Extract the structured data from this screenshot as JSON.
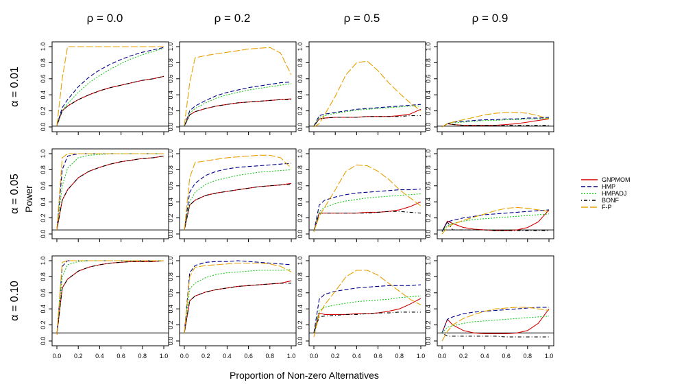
{
  "figure": {
    "xlabel": "Proportion of Non-zero Alternatives",
    "ylabel": "Power"
  },
  "chart_data": {
    "type": "line",
    "column_titles": [
      "ρ = 0.0",
      "ρ = 0.2",
      "ρ = 0.5",
      "ρ = 0.9"
    ],
    "row_titles": [
      "α = 0.01",
      "α = 0.05",
      "α = 0.10"
    ],
    "alpha_levels": [
      0.01,
      0.05,
      0.1
    ],
    "xlim": [
      0,
      1
    ],
    "ylim": [
      0,
      1
    ],
    "x_ticks": [
      "0.0",
      "0.2",
      "0.4",
      "0.6",
      "0.8",
      "1.0"
    ],
    "y_ticks": [
      "0.0",
      "0.2",
      "0.4",
      "0.6",
      "0.8",
      "1.0"
    ],
    "legend": [
      {
        "name": "GNPMOM",
        "color": "#d40000",
        "dash": "solid"
      },
      {
        "name": "HMP",
        "color": "#00008b",
        "dash": "dashed"
      },
      {
        "name": "HMPADJ",
        "color": "#1ec81e",
        "dash": "dotted"
      },
      {
        "name": "BONF",
        "color": "#000000",
        "dash": "dotdash"
      },
      {
        "name": "F-P",
        "color": "#e8a000",
        "dash": "longdash"
      }
    ],
    "x": [
      0.0,
      0.05,
      0.1,
      0.2,
      0.3,
      0.4,
      0.5,
      0.6,
      0.7,
      0.8,
      0.9,
      1.0
    ],
    "panels": [
      [
        {
          "GNPMOM": [
            0.02,
            0.2,
            0.26,
            0.34,
            0.4,
            0.45,
            0.49,
            0.52,
            0.55,
            0.58,
            0.6,
            0.63
          ],
          "HMP": [
            0.02,
            0.24,
            0.34,
            0.5,
            0.62,
            0.71,
            0.78,
            0.84,
            0.89,
            0.93,
            0.96,
            0.99
          ],
          "HMPADJ": [
            0.02,
            0.2,
            0.29,
            0.43,
            0.55,
            0.64,
            0.72,
            0.79,
            0.85,
            0.9,
            0.94,
            0.98
          ],
          "BONF": [
            0.02,
            0.2,
            0.26,
            0.34,
            0.4,
            0.45,
            0.49,
            0.52,
            0.55,
            0.58,
            0.6,
            0.63
          ],
          "F-P": [
            0.02,
            0.6,
            1.0,
            1.0,
            1.0,
            1.0,
            1.0,
            1.0,
            1.0,
            1.0,
            1.0,
            1.0
          ]
        },
        {
          "GNPMOM": [
            0.01,
            0.15,
            0.19,
            0.23,
            0.26,
            0.28,
            0.3,
            0.31,
            0.32,
            0.33,
            0.34,
            0.35
          ],
          "HMP": [
            0.01,
            0.2,
            0.26,
            0.33,
            0.39,
            0.43,
            0.46,
            0.49,
            0.51,
            0.53,
            0.55,
            0.56
          ],
          "HMPADJ": [
            0.01,
            0.17,
            0.23,
            0.3,
            0.36,
            0.4,
            0.43,
            0.46,
            0.48,
            0.5,
            0.52,
            0.54
          ],
          "BONF": [
            0.01,
            0.15,
            0.19,
            0.23,
            0.26,
            0.28,
            0.3,
            0.31,
            0.32,
            0.33,
            0.34,
            0.34
          ],
          "F-P": [
            0.02,
            0.55,
            0.86,
            0.89,
            0.91,
            0.93,
            0.95,
            0.97,
            0.98,
            0.99,
            0.92,
            0.65
          ]
        },
        {
          "GNPMOM": [
            0.01,
            0.1,
            0.11,
            0.12,
            0.12,
            0.12,
            0.13,
            0.13,
            0.13,
            0.14,
            0.16,
            0.22
          ],
          "HMP": [
            0.01,
            0.14,
            0.16,
            0.18,
            0.2,
            0.22,
            0.23,
            0.24,
            0.25,
            0.26,
            0.27,
            0.28
          ],
          "HMPADJ": [
            0.01,
            0.12,
            0.14,
            0.17,
            0.19,
            0.21,
            0.22,
            0.23,
            0.24,
            0.25,
            0.26,
            0.26
          ],
          "BONF": [
            0.01,
            0.1,
            0.11,
            0.12,
            0.12,
            0.12,
            0.13,
            0.13,
            0.13,
            0.13,
            0.14,
            0.14
          ],
          "F-P": [
            0.0,
            0.04,
            0.15,
            0.38,
            0.65,
            0.8,
            0.82,
            0.7,
            0.55,
            0.42,
            0.3,
            0.2
          ]
        },
        {
          "GNPMOM": [
            0.0,
            0.04,
            0.03,
            0.02,
            0.02,
            0.02,
            0.02,
            0.03,
            0.04,
            0.06,
            0.08,
            0.1
          ],
          "HMP": [
            0.0,
            0.04,
            0.06,
            0.07,
            0.08,
            0.09,
            0.09,
            0.1,
            0.1,
            0.11,
            0.11,
            0.12
          ],
          "HMPADJ": [
            0.0,
            0.04,
            0.05,
            0.06,
            0.07,
            0.08,
            0.08,
            0.09,
            0.09,
            0.1,
            0.1,
            0.11
          ],
          "BONF": [
            0.0,
            0.04,
            0.03,
            0.02,
            0.02,
            0.02,
            0.02,
            0.02,
            0.02,
            0.02,
            0.02,
            0.02
          ],
          "F-P": [
            0.0,
            0.04,
            0.06,
            0.09,
            0.12,
            0.15,
            0.17,
            0.18,
            0.18,
            0.17,
            0.14,
            0.1
          ]
        }
      ],
      [
        {
          "GNPMOM": [
            0.05,
            0.42,
            0.55,
            0.7,
            0.78,
            0.83,
            0.87,
            0.9,
            0.92,
            0.94,
            0.95,
            0.97
          ],
          "HMP": [
            0.05,
            0.8,
            0.97,
            1.0,
            1.0,
            1.0,
            1.0,
            1.0,
            1.0,
            1.0,
            1.0,
            1.0
          ],
          "HMPADJ": [
            0.05,
            0.6,
            0.82,
            0.95,
            0.98,
            0.99,
            1.0,
            1.0,
            1.0,
            1.0,
            1.0,
            1.0
          ],
          "BONF": [
            0.05,
            0.42,
            0.55,
            0.7,
            0.78,
            0.83,
            0.87,
            0.9,
            0.92,
            0.94,
            0.95,
            0.97
          ],
          "F-P": [
            0.05,
            0.95,
            1.0,
            1.0,
            1.0,
            1.0,
            1.0,
            1.0,
            1.0,
            1.0,
            1.0,
            1.0
          ]
        },
        {
          "GNPMOM": [
            0.05,
            0.36,
            0.42,
            0.48,
            0.51,
            0.53,
            0.55,
            0.57,
            0.59,
            0.6,
            0.61,
            0.63
          ],
          "HMP": [
            0.05,
            0.52,
            0.63,
            0.73,
            0.78,
            0.81,
            0.83,
            0.84,
            0.85,
            0.86,
            0.87,
            0.88
          ],
          "HMPADJ": [
            0.05,
            0.4,
            0.52,
            0.62,
            0.67,
            0.7,
            0.73,
            0.75,
            0.77,
            0.78,
            0.79,
            0.8
          ],
          "BONF": [
            0.05,
            0.36,
            0.42,
            0.48,
            0.51,
            0.53,
            0.55,
            0.57,
            0.59,
            0.6,
            0.61,
            0.62
          ],
          "F-P": [
            0.05,
            0.7,
            0.89,
            0.91,
            0.93,
            0.95,
            0.96,
            0.97,
            0.98,
            0.98,
            0.95,
            0.82
          ]
        },
        {
          "GNPMOM": [
            0.03,
            0.26,
            0.26,
            0.26,
            0.26,
            0.26,
            0.27,
            0.27,
            0.28,
            0.3,
            0.34,
            0.4
          ],
          "HMP": [
            0.03,
            0.36,
            0.42,
            0.46,
            0.49,
            0.51,
            0.52,
            0.53,
            0.54,
            0.55,
            0.55,
            0.56
          ],
          "HMPADJ": [
            0.03,
            0.28,
            0.33,
            0.38,
            0.41,
            0.43,
            0.45,
            0.46,
            0.47,
            0.48,
            0.49,
            0.5
          ],
          "BONF": [
            0.03,
            0.26,
            0.26,
            0.26,
            0.26,
            0.26,
            0.26,
            0.27,
            0.28,
            0.28,
            0.27,
            0.26
          ],
          "F-P": [
            0.03,
            0.22,
            0.33,
            0.55,
            0.78,
            0.86,
            0.85,
            0.78,
            0.68,
            0.55,
            0.45,
            0.35
          ]
        },
        {
          "GNPMOM": [
            0.03,
            0.16,
            0.13,
            0.08,
            0.06,
            0.05,
            0.04,
            0.04,
            0.05,
            0.08,
            0.15,
            0.3
          ],
          "HMP": [
            0.03,
            0.15,
            0.17,
            0.2,
            0.22,
            0.24,
            0.25,
            0.26,
            0.27,
            0.28,
            0.29,
            0.3
          ],
          "HMPADJ": [
            0.03,
            0.1,
            0.13,
            0.16,
            0.18,
            0.19,
            0.2,
            0.21,
            0.22,
            0.23,
            0.24,
            0.25
          ],
          "BONF": [
            0.03,
            0.15,
            0.05,
            0.05,
            0.05,
            0.05,
            0.04,
            0.04,
            0.04,
            0.04,
            0.04,
            0.04
          ],
          "F-P": [
            0.0,
            0.08,
            0.12,
            0.17,
            0.21,
            0.25,
            0.29,
            0.32,
            0.33,
            0.32,
            0.3,
            0.28
          ]
        }
      ],
      [
        {
          "GNPMOM": [
            0.08,
            0.66,
            0.77,
            0.87,
            0.92,
            0.95,
            0.97,
            0.98,
            0.99,
            0.99,
            0.99,
            1.0
          ],
          "HMP": [
            0.08,
            0.93,
            1.0,
            1.0,
            1.0,
            1.0,
            1.0,
            1.0,
            1.0,
            1.0,
            1.0,
            1.0
          ],
          "HMPADJ": [
            0.08,
            0.8,
            0.95,
            0.99,
            1.0,
            1.0,
            1.0,
            1.0,
            1.0,
            1.0,
            1.0,
            1.0
          ],
          "BONF": [
            0.08,
            0.66,
            0.77,
            0.87,
            0.92,
            0.95,
            0.97,
            0.98,
            0.99,
            0.99,
            0.99,
            1.0
          ],
          "F-P": [
            0.08,
            0.98,
            1.0,
            1.0,
            1.0,
            1.0,
            1.0,
            1.0,
            1.0,
            1.0,
            1.0,
            1.0
          ]
        },
        {
          "GNPMOM": [
            0.1,
            0.5,
            0.56,
            0.61,
            0.64,
            0.66,
            0.68,
            0.69,
            0.7,
            0.71,
            0.72,
            0.75
          ],
          "HMP": [
            0.1,
            0.85,
            0.94,
            0.98,
            0.99,
            0.99,
            1.0,
            0.99,
            0.98,
            0.97,
            0.96,
            0.95
          ],
          "HMPADJ": [
            0.1,
            0.65,
            0.72,
            0.79,
            0.83,
            0.85,
            0.86,
            0.87,
            0.88,
            0.88,
            0.88,
            0.89
          ],
          "BONF": [
            0.1,
            0.5,
            0.56,
            0.61,
            0.64,
            0.66,
            0.68,
            0.69,
            0.7,
            0.71,
            0.72,
            0.72
          ],
          "F-P": [
            0.1,
            0.8,
            0.92,
            0.94,
            0.95,
            0.96,
            0.97,
            0.97,
            0.97,
            0.96,
            0.93,
            0.86
          ]
        },
        {
          "GNPMOM": [
            0.1,
            0.35,
            0.33,
            0.33,
            0.33,
            0.34,
            0.34,
            0.35,
            0.37,
            0.4,
            0.46,
            0.53
          ],
          "HMP": [
            0.1,
            0.52,
            0.58,
            0.62,
            0.64,
            0.66,
            0.67,
            0.68,
            0.69,
            0.69,
            0.69,
            0.7
          ],
          "HMPADJ": [
            0.1,
            0.38,
            0.42,
            0.45,
            0.47,
            0.49,
            0.5,
            0.51,
            0.52,
            0.54,
            0.55,
            0.56
          ],
          "BONF": [
            0.1,
            0.3,
            0.31,
            0.32,
            0.33,
            0.33,
            0.34,
            0.35,
            0.35,
            0.36,
            0.36,
            0.36
          ],
          "F-P": [
            0.05,
            0.33,
            0.45,
            0.62,
            0.8,
            0.88,
            0.88,
            0.82,
            0.72,
            0.62,
            0.52,
            0.45
          ]
        },
        {
          "GNPMOM": [
            0.1,
            0.27,
            0.2,
            0.13,
            0.1,
            0.09,
            0.09,
            0.09,
            0.1,
            0.13,
            0.22,
            0.4
          ],
          "HMP": [
            0.1,
            0.27,
            0.3,
            0.34,
            0.36,
            0.37,
            0.38,
            0.39,
            0.4,
            0.41,
            0.42,
            0.42
          ],
          "HMPADJ": [
            0.1,
            0.17,
            0.19,
            0.22,
            0.24,
            0.25,
            0.26,
            0.27,
            0.28,
            0.29,
            0.3,
            0.31
          ],
          "BONF": [
            0.1,
            0.06,
            0.06,
            0.06,
            0.06,
            0.06,
            0.06,
            0.05,
            0.05,
            0.05,
            0.05,
            0.05
          ],
          "F-P": [
            0.0,
            0.12,
            0.2,
            0.28,
            0.33,
            0.37,
            0.4,
            0.41,
            0.42,
            0.42,
            0.4,
            0.38
          ]
        }
      ]
    ]
  }
}
